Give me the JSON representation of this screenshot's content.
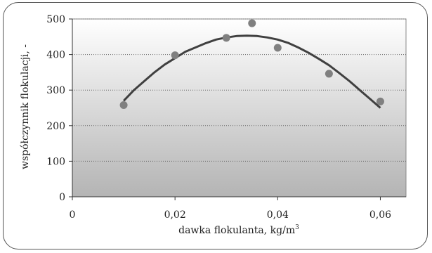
{
  "chart_data": {
    "type": "scatter",
    "xlabel": "dawka flokulanta, kg/m",
    "xlabel_sup": "3",
    "ylabel": "współczynnik flokulacji, -",
    "xlim": [
      0,
      0.065
    ],
    "ylim": [
      0,
      500
    ],
    "x_ticks": [
      {
        "value": 0,
        "label": "0"
      },
      {
        "value": 0.02,
        "label": "0,02"
      },
      {
        "value": 0.04,
        "label": "0,04"
      },
      {
        "value": 0.06,
        "label": "0,06"
      }
    ],
    "y_ticks": [
      {
        "value": 0,
        "label": "0"
      },
      {
        "value": 100,
        "label": "100"
      },
      {
        "value": 200,
        "label": "200"
      },
      {
        "value": 300,
        "label": "300"
      },
      {
        "value": 400,
        "label": "400"
      },
      {
        "value": 500,
        "label": "500"
      }
    ],
    "grid": "horizontal dotted",
    "points": [
      {
        "x": 0.01,
        "y": 258
      },
      {
        "x": 0.02,
        "y": 398
      },
      {
        "x": 0.03,
        "y": 447
      },
      {
        "x": 0.035,
        "y": 488
      },
      {
        "x": 0.04,
        "y": 419
      },
      {
        "x": 0.05,
        "y": 346
      },
      {
        "x": 0.06,
        "y": 268
      }
    ],
    "trend_line": {
      "x": [
        0.01,
        0.012,
        0.014,
        0.016,
        0.018,
        0.02,
        0.022,
        0.024,
        0.026,
        0.028,
        0.03,
        0.032,
        0.034,
        0.036,
        0.038,
        0.04,
        0.042,
        0.044,
        0.046,
        0.048,
        0.05,
        0.052,
        0.054,
        0.056,
        0.058,
        0.06
      ],
      "y": [
        270,
        300,
        325,
        350,
        372,
        390,
        408,
        420,
        432,
        442,
        448,
        452,
        453,
        452,
        448,
        442,
        433,
        420,
        405,
        388,
        370,
        348,
        325,
        300,
        275,
        250
      ]
    },
    "colors": {
      "points": "#808080",
      "line": "#404040",
      "plot_bg_top": "#ffffff",
      "plot_bg_bottom": "#b4b4b4"
    }
  }
}
